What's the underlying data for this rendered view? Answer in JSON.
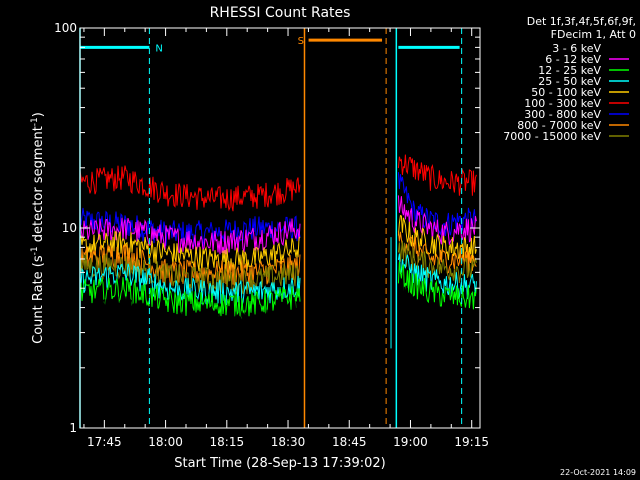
{
  "chart_data": {
    "type": "line",
    "title": "RHESSI Count Rates",
    "xlabel": "Start Time (28-Sep-13 17:39:02)",
    "ylabel_main": "Count Rate (s",
    "ylabel_sup1": "-1",
    "ylabel_mid": " detector segment",
    "ylabel_sup2": "-1",
    "ylabel_end": ")",
    "x_ticks": [
      "17:45",
      "18:00",
      "18:15",
      "18:30",
      "18:45",
      "19:00",
      "19:15"
    ],
    "y_ticks": [
      "1",
      "10",
      "100"
    ],
    "y_log": true,
    "ylim": [
      1,
      100
    ],
    "xlim_minutes": [
      0,
      98
    ],
    "legend_header": [
      "Det 1f,3f,4f,5f,6f,9f,",
      "FDecim 1, Att 0"
    ],
    "series": [
      {
        "name": "3 - 6 keV",
        "color": "#000000"
      },
      {
        "name": "6 - 12 keV",
        "color": "#ff00ff"
      },
      {
        "name": "12 - 25 keV",
        "color": "#00ff00"
      },
      {
        "name": "25 - 50 keV",
        "color": "#00ffff"
      },
      {
        "name": "50 - 100 keV",
        "color": "#ffcc00"
      },
      {
        "name": "100 - 300 keV",
        "color": "#ff0000"
      },
      {
        "name": "300 - 800 keV",
        "color": "#0000ff"
      },
      {
        "name": "800 - 7000 keV",
        "color": "#ff8800"
      },
      {
        "name": "7000 - 15000 keV",
        "color": "#808000"
      }
    ],
    "segments": [
      [
        0,
        54
      ],
      [
        78,
        97
      ]
    ],
    "series_levels": [
      {
        "name": "300 - 800 keV",
        "seg1": [
          11,
          10.5,
          9.5,
          9.5,
          10,
          10
        ],
        "seg2": [
          17,
          12,
          11,
          10.5,
          11,
          11
        ]
      },
      {
        "name": "100 - 300 keV",
        "seg1": [
          17,
          18,
          15,
          14,
          14.5,
          16
        ],
        "seg2": [
          22,
          20,
          18,
          17,
          17,
          17
        ]
      },
      {
        "name": "6 - 12 keV",
        "seg1": [
          9.5,
          10,
          9,
          8.5,
          9,
          10
        ],
        "seg2": [
          13,
          11,
          10,
          9.5,
          10,
          10
        ]
      },
      {
        "name": "50 - 100 keV",
        "seg1": [
          8,
          8.5,
          7.5,
          7,
          7,
          8
        ],
        "seg2": [
          10.5,
          9,
          8.5,
          8,
          8,
          8
        ]
      },
      {
        "name": "800 - 7000 keV",
        "seg1": [
          7,
          7.5,
          6,
          6,
          6,
          6.5
        ],
        "seg2": [
          9,
          8,
          7,
          7,
          7,
          7
        ]
      },
      {
        "name": "7000 - 15000 keV",
        "seg1": [
          6.5,
          6.5,
          5.8,
          5.5,
          5.5,
          6
        ],
        "seg2": [
          8,
          7,
          6.5,
          6.3,
          6.2,
          6.2
        ]
      },
      {
        "name": "25 - 50 keV",
        "seg1": [
          5.5,
          6,
          5,
          4.8,
          4.8,
          5.2
        ],
        "seg2": [
          7,
          6,
          5.5,
          5.3,
          5.2,
          5.2
        ]
      },
      {
        "name": "12 - 25 keV",
        "seg1": [
          4.8,
          5,
          4.3,
          4.2,
          4.2,
          4.6
        ],
        "seg2": [
          6,
          5.2,
          4.8,
          4.6,
          4.5,
          4.5
        ]
      },
      {
        "name": "3 - 6 keV",
        "seg1": [
          3.6,
          4,
          3.4,
          3.3,
          3.4,
          3.8
        ],
        "seg2": [
          5,
          4,
          3.6,
          3.4,
          3.3,
          3.3
        ]
      }
    ],
    "annotations": {
      "night_label": "N",
      "saa_label": "S",
      "night_bars": [
        [
          0,
          17
        ],
        [
          78,
          93
        ]
      ],
      "night_solid_lines": [
        0,
        77.5
      ],
      "night_dashed_lines": [
        17,
        93.5
      ],
      "saa_bar": [
        56,
        74
      ],
      "saa_solid_line": 55,
      "saa_dashed_line": 75
    },
    "gap_lines": [
      {
        "minute": 76.2,
        "from": 2.5,
        "to": 9
      }
    ]
  },
  "timestamp": "22-Oct-2021 14:09",
  "colors": {
    "background": "#000000",
    "foreground": "#ffffff",
    "night": "#00ffff",
    "saa": "#ff8800"
  }
}
